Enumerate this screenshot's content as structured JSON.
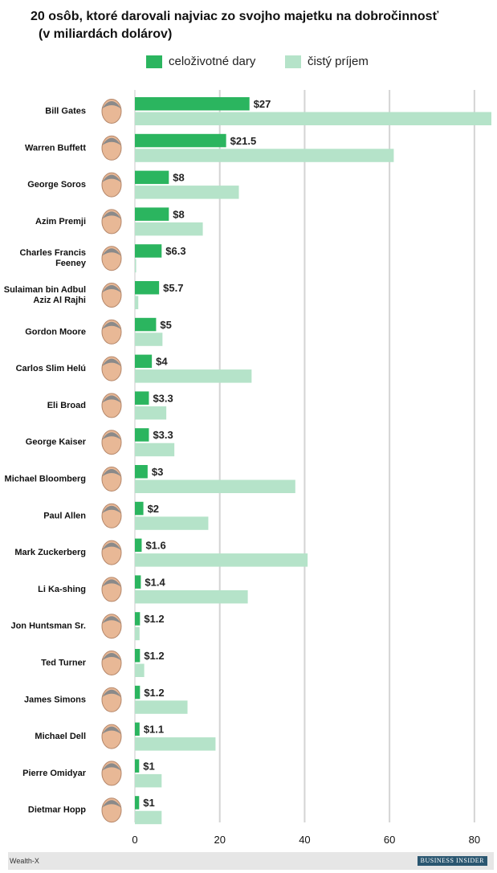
{
  "title_line1": "20 osôb, ktoré darovali najviac zo svojho majetku na dobročinnosť",
  "title_line2": "(v miliardách dolárov)",
  "legend": {
    "lifetime": "celoživotné dary",
    "networth": "čistý príjem"
  },
  "colors": {
    "lifetime": "#2bb55f",
    "networth": "#b5e3c9",
    "grid": "#d4d4d4"
  },
  "footer": {
    "source": "Wealth-X",
    "brand": "BUSINESS INSIDER"
  },
  "chart_data": {
    "type": "bar",
    "orientation": "horizontal",
    "categories": [
      [
        "Bill Gates"
      ],
      [
        "Warren Buffett"
      ],
      [
        "George Soros"
      ],
      [
        "Azim Premji"
      ],
      [
        "Charles Francis",
        "Feeney"
      ],
      [
        "Sulaiman bin Adbul",
        "Aziz Al Rajhi"
      ],
      [
        "Gordon Moore"
      ],
      [
        "Carlos Slim Helú"
      ],
      [
        "Eli Broad"
      ],
      [
        "George Kaiser"
      ],
      [
        "Michael Bloomberg"
      ],
      [
        "Paul Allen"
      ],
      [
        "Mark Zuckerberg"
      ],
      [
        "Li Ka-shing"
      ],
      [
        "Jon Huntsman Sr."
      ],
      [
        "Ted Turner"
      ],
      [
        "James Simons"
      ],
      [
        "Michael Dell"
      ],
      [
        "Pierre Omidyar"
      ],
      [
        "Dietmar Hopp"
      ]
    ],
    "series": [
      {
        "name": "celoživotné dary",
        "values": [
          27,
          21.5,
          8,
          8,
          6.3,
          5.7,
          5,
          4,
          3.3,
          3.3,
          3,
          2,
          1.6,
          1.4,
          1.2,
          1.2,
          1.2,
          1.1,
          1,
          1
        ],
        "labels": [
          "$27",
          "$21.5",
          "$8",
          "$8",
          "$6.3",
          "$5.7",
          "$5",
          "$4",
          "$3.3",
          "$3.3",
          "$3",
          "$2",
          "$1.6",
          "$1.4",
          "$1.2",
          "$1.2",
          "$1.2",
          "$1.1",
          "$1",
          "$1"
        ]
      },
      {
        "name": "čistý príjem",
        "values": [
          84,
          61,
          24.5,
          16,
          0.3,
          0.8,
          6.5,
          27.5,
          7.4,
          9.3,
          37.8,
          17.3,
          40.7,
          26.6,
          1.1,
          2.2,
          12.4,
          19,
          6.3,
          6.3
        ]
      }
    ],
    "xticks": [
      0,
      20,
      40,
      60,
      80
    ],
    "xlim": [
      0,
      84
    ],
    "grid": true,
    "legend_position": "top"
  }
}
